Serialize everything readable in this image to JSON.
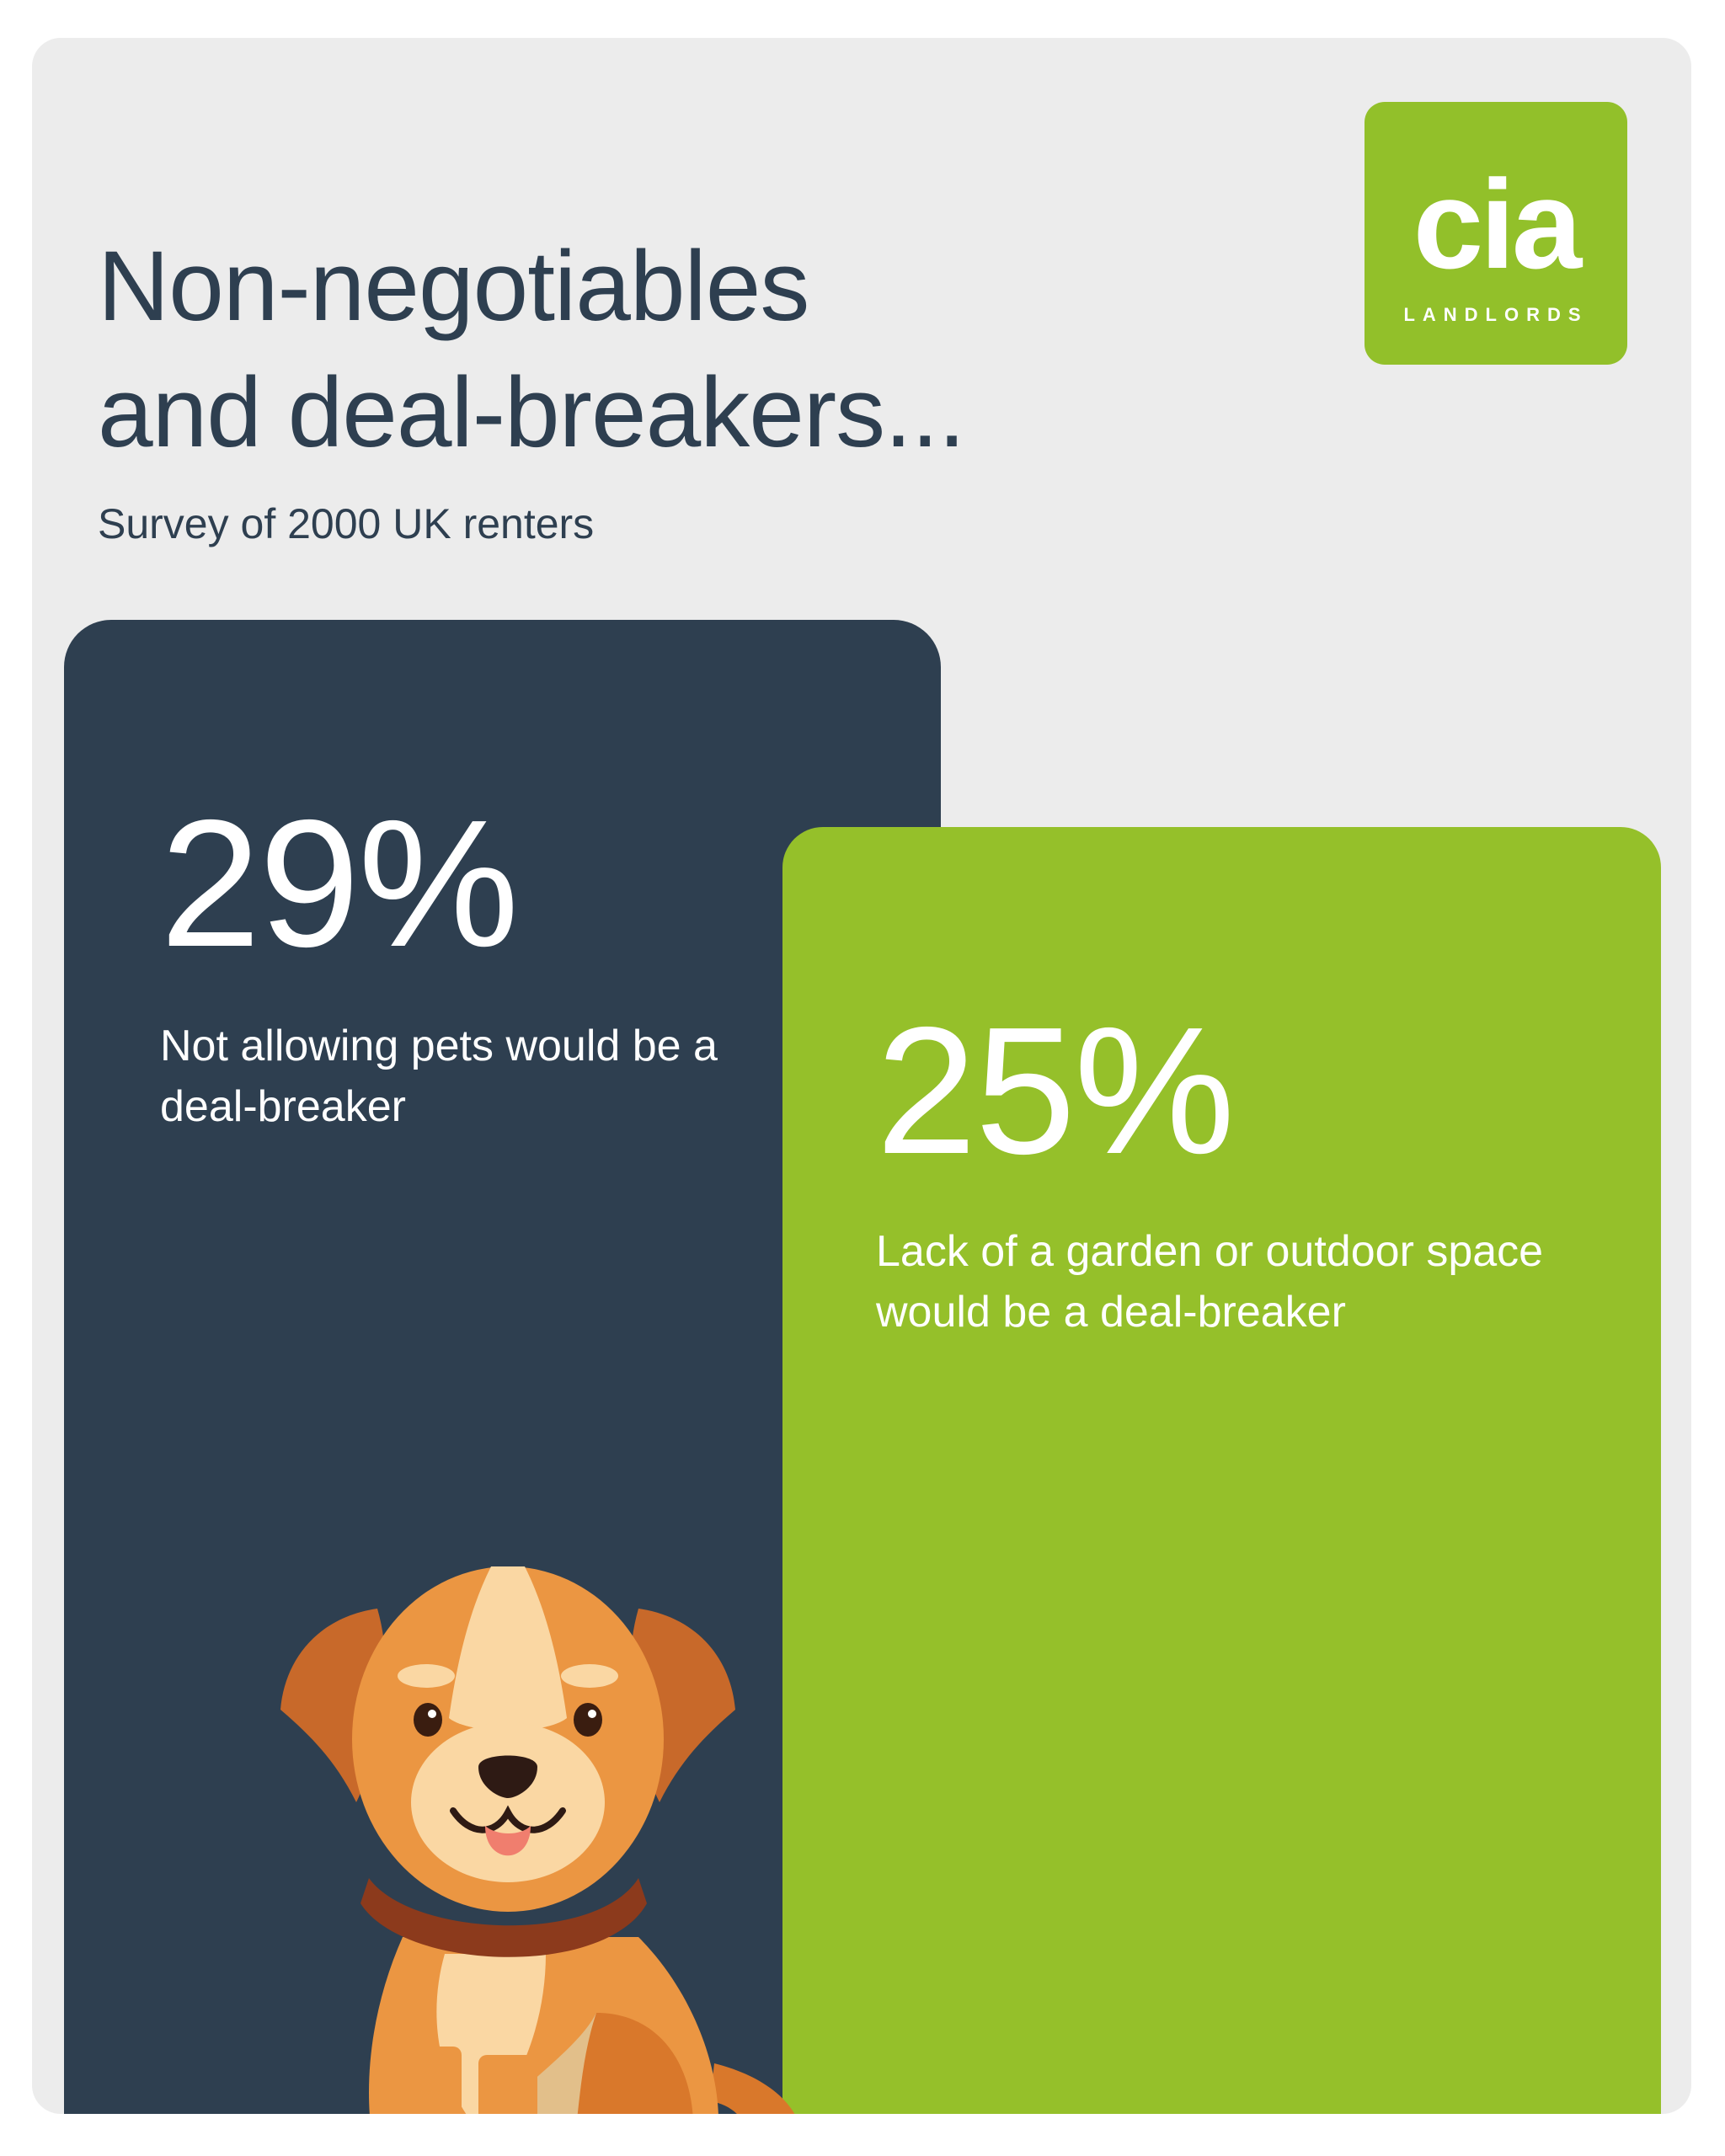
{
  "header": {
    "title_line1": "Non-negotiables",
    "title_line2": "and deal-breakers...",
    "subtitle": "Survey of 2000 UK renters"
  },
  "logo": {
    "word": "cia",
    "sub": "LANDLORDS",
    "color": "#92c02a"
  },
  "stats": [
    {
      "value": "29%",
      "description": "Not allowing pets would be a deal-breaker",
      "color": "#2e3f50"
    },
    {
      "value": "25%",
      "description": "Lack of a garden or outdoor space would be a deal-breaker",
      "color": "#95c02a"
    }
  ],
  "illustration": {
    "icon": "dog-icon"
  }
}
